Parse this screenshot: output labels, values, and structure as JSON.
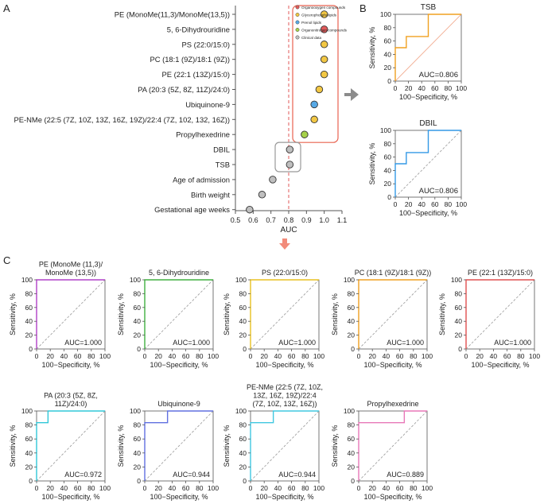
{
  "panels": {
    "a": "A",
    "b": "B",
    "c": "C"
  },
  "colors": {
    "categories": {
      "Organooxygen compounds": "#e05a5a",
      "Glycerophospholipids": "#f2c744",
      "Prenol lipids": "#57a9e6",
      "Organonitrogen compounds": "#a6d14a",
      "Clinical data": "#bfbfbf"
    },
    "box_red": "#e8624f",
    "box_gray": "#999999",
    "arrow": "#8c8c8c",
    "arrow_down": "#f28b7a",
    "threshold": "#e05a5a",
    "diag_b": "#f0a080",
    "diag_gray": "#999999"
  },
  "chart_data": [
    {
      "id": "A",
      "type": "scatter",
      "title": "",
      "xlabel": "AUC",
      "ylabel": "",
      "xlim": [
        0.5,
        1.1
      ],
      "xticks": [
        "0.5",
        "0.6",
        "0.7",
        "0.8",
        "0.9",
        "1.0",
        "1.1"
      ],
      "threshold": 0.8,
      "legend": [
        "Organooxygen compounds",
        "Glycerophospholipids",
        "Prenol lipids",
        "Organonitrogen compounds",
        "Clinical data"
      ],
      "legend_position": "top-right",
      "points": [
        {
          "label": "PE (MonoMe(11,3)/MonoMe(13,5))",
          "value": 1.0,
          "category": "Glycerophospholipids"
        },
        {
          "label": "5, 6-Dihydrouridine",
          "value": 1.0,
          "category": "Organooxygen compounds"
        },
        {
          "label": "PS (22:0/15:0)",
          "value": 1.0,
          "category": "Glycerophospholipids"
        },
        {
          "label": "PC (18:1 (9Z)/18:1 (9Z))",
          "value": 1.0,
          "category": "Glycerophospholipids"
        },
        {
          "label": "PE (22:1 (13Z)/15:0)",
          "value": 1.0,
          "category": "Glycerophospholipids"
        },
        {
          "label": "PA (20:3 (5Z, 8Z, 11Z)/24:0)",
          "value": 0.972,
          "category": "Glycerophospholipids"
        },
        {
          "label": "Ubiquinone-9",
          "value": 0.944,
          "category": "Prenol lipids"
        },
        {
          "label": "PE-NMe (22:5 (7Z, 10Z, 13Z, 16Z, 19Z)/22:4 (7Z, 102, 132, 16Z))",
          "value": 0.944,
          "category": "Glycerophospholipids"
        },
        {
          "label": "Propylhexedrine",
          "value": 0.889,
          "category": "Organonitrogen compounds"
        },
        {
          "label": "DBIL",
          "value": 0.806,
          "category": "Clinical data"
        },
        {
          "label": "TSB",
          "value": 0.806,
          "category": "Clinical data"
        },
        {
          "label": "Age of admission",
          "value": 0.71,
          "category": "Clinical data"
        },
        {
          "label": "Birth weight",
          "value": 0.65,
          "category": "Clinical data"
        },
        {
          "label": "Gestational age weeks",
          "value": 0.58,
          "category": "Clinical data"
        }
      ]
    },
    {
      "id": "B1",
      "type": "line",
      "title": "TSB",
      "xlabel": "100−Specificity, %",
      "ylabel": "Sensitivity, %",
      "xlim": [
        0,
        100
      ],
      "ylim": [
        0,
        100
      ],
      "xticks": [
        "0",
        "20",
        "40",
        "60",
        "80",
        "100"
      ],
      "yticks": [
        "0",
        "20",
        "40",
        "60",
        "80",
        "100"
      ],
      "color": "#f0a020",
      "diag_color": "#f0a080",
      "series": [
        {
          "name": "TSB",
          "x": [
            0,
            0,
            16.7,
            16.7,
            50,
            50,
            100
          ],
          "y": [
            0,
            50,
            50,
            66.7,
            66.7,
            100,
            100
          ]
        }
      ],
      "auc_text": "AUC=0.806"
    },
    {
      "id": "B2",
      "type": "line",
      "title": "DBIL",
      "xlabel": "100−Specificity, %",
      "ylabel": "Sensitivity, %",
      "xlim": [
        0,
        100
      ],
      "ylim": [
        0,
        100
      ],
      "xticks": [
        "0",
        "20",
        "40",
        "60",
        "80",
        "100"
      ],
      "yticks": [
        "0",
        "20",
        "40",
        "60",
        "80",
        "100"
      ],
      "color": "#3399e6",
      "diag_color": "#999999",
      "series": [
        {
          "name": "DBIL",
          "x": [
            0,
            0,
            16.7,
            16.7,
            50,
            50,
            100
          ],
          "y": [
            0,
            50,
            50,
            66.7,
            66.7,
            100,
            100
          ]
        }
      ],
      "auc_text": "AUC=0.806"
    },
    {
      "id": "C1",
      "type": "line",
      "title": "PE (MonoMe (11,3)/ MonoMe (13,5))",
      "xlabel": "100−Specificity, %",
      "ylabel": "Sensitivity, %",
      "xlim": [
        0,
        100
      ],
      "ylim": [
        0,
        100
      ],
      "xticks": [
        "0",
        "20",
        "40",
        "60",
        "80",
        "100"
      ],
      "yticks": [
        "0",
        "20",
        "40",
        "60",
        "80",
        "100"
      ],
      "color": "#b040c8",
      "diag_color": "#999999",
      "series": [
        {
          "name": "PE (MonoMe)",
          "x": [
            0,
            0,
            100
          ],
          "y": [
            0,
            100,
            100
          ]
        }
      ],
      "auc_text": "AUC=1.000"
    },
    {
      "id": "C2",
      "type": "line",
      "title": "5, 6-Dihydrouridine",
      "xlabel": "100−Specificity, %",
      "ylabel": "Sensitivity, %",
      "xlim": [
        0,
        100
      ],
      "ylim": [
        0,
        100
      ],
      "xticks": [
        "0",
        "20",
        "40",
        "60",
        "80",
        "100"
      ],
      "yticks": [
        "0",
        "20",
        "40",
        "60",
        "80",
        "100"
      ],
      "color": "#40b040",
      "diag_color": "#999999",
      "series": [
        {
          "name": "5, 6-Dihydrouridine",
          "x": [
            0,
            0,
            100
          ],
          "y": [
            0,
            100,
            100
          ]
        }
      ],
      "auc_text": "AUC=1.000"
    },
    {
      "id": "C3",
      "type": "line",
      "title": "PS (22:0/15:0)",
      "xlabel": "100−Specificity, %",
      "ylabel": "Sensitivity, %",
      "xlim": [
        0,
        100
      ],
      "ylim": [
        0,
        100
      ],
      "xticks": [
        "0",
        "20",
        "40",
        "60",
        "80",
        "100"
      ],
      "yticks": [
        "0",
        "20",
        "40",
        "60",
        "80",
        "100"
      ],
      "color": "#e8c020",
      "diag_color": "#999999",
      "series": [
        {
          "name": "PS (22:0/15:0)",
          "x": [
            0,
            0,
            100
          ],
          "y": [
            0,
            100,
            100
          ]
        }
      ],
      "auc_text": "AUC=1.000"
    },
    {
      "id": "C4",
      "type": "line",
      "title": "PC (18:1 (9Z)/18:1 (9Z))",
      "xlabel": "100−Specificity, %",
      "ylabel": "Sensitivity, %",
      "xlim": [
        0,
        100
      ],
      "ylim": [
        0,
        100
      ],
      "xticks": [
        "0",
        "20",
        "40",
        "60",
        "80",
        "100"
      ],
      "yticks": [
        "0",
        "20",
        "40",
        "60",
        "80",
        "100"
      ],
      "color": "#f0a020",
      "diag_color": "#999999",
      "series": [
        {
          "name": "PC (18:1 (9Z)/18:1 (9Z))",
          "x": [
            0,
            0,
            100
          ],
          "y": [
            0,
            100,
            100
          ]
        }
      ],
      "auc_text": "AUC=1.000"
    },
    {
      "id": "C5",
      "type": "line",
      "title": "PE (22:1 (13Z)/15:0)",
      "xlabel": "100−Specificity, %",
      "ylabel": "Sensitivity, %",
      "xlim": [
        0,
        100
      ],
      "ylim": [
        0,
        100
      ],
      "xticks": [
        "0",
        "20",
        "40",
        "60",
        "80",
        "100"
      ],
      "yticks": [
        "0",
        "20",
        "40",
        "60",
        "80",
        "100"
      ],
      "color": "#e05050",
      "diag_color": "#999999",
      "series": [
        {
          "name": "PE (22:1 (13Z)/15:0)",
          "x": [
            0,
            0,
            100
          ],
          "y": [
            0,
            100,
            100
          ]
        }
      ],
      "auc_text": "AUC=1.000"
    },
    {
      "id": "C6",
      "type": "line",
      "title": "PA (20:3 (5Z, 8Z, 11Z)/24:0)",
      "xlabel": "100−Specificity, %",
      "ylabel": "Sensitivity, %",
      "xlim": [
        0,
        100
      ],
      "ylim": [
        0,
        100
      ],
      "xticks": [
        "0",
        "20",
        "40",
        "60",
        "80",
        "100"
      ],
      "yticks": [
        "0",
        "20",
        "40",
        "60",
        "80",
        "100"
      ],
      "color": "#30c8d8",
      "diag_color": "#999999",
      "series": [
        {
          "name": "PA",
          "x": [
            0,
            0,
            16.7,
            16.7,
            100
          ],
          "y": [
            0,
            83.3,
            83.3,
            100,
            100
          ]
        }
      ],
      "auc_text": "AUC=0.972"
    },
    {
      "id": "C7",
      "type": "line",
      "title": "Ubiquinone-9",
      "xlabel": "100−Specificity, %",
      "ylabel": "Sensitivity, %",
      "xlim": [
        0,
        100
      ],
      "ylim": [
        0,
        100
      ],
      "xticks": [
        "0",
        "20",
        "40",
        "60",
        "80",
        "100"
      ],
      "yticks": [
        "0",
        "20",
        "40",
        "60",
        "80",
        "100"
      ],
      "color": "#6070e0",
      "diag_color": "#999999",
      "series": [
        {
          "name": "Ubiquinone-9",
          "x": [
            0,
            0,
            33.3,
            33.3,
            100
          ],
          "y": [
            0,
            83.3,
            83.3,
            100,
            100
          ]
        }
      ],
      "auc_text": "AUC=0.944"
    },
    {
      "id": "C8",
      "type": "line",
      "title": "PE-NMe (22:5 (7Z, 10Z, 13Z, 16Z, 19Z)/22:4 (7Z, 10Z, 13Z, 16Z))",
      "xlabel": "100−Specificity, %",
      "ylabel": "Sensitivity, %",
      "xlim": [
        0,
        100
      ],
      "ylim": [
        0,
        100
      ],
      "xticks": [
        "0",
        "20",
        "40",
        "60",
        "80",
        "100"
      ],
      "yticks": [
        "0",
        "20",
        "40",
        "60",
        "80",
        "100"
      ],
      "color": "#40c8e0",
      "diag_color": "#999999",
      "series": [
        {
          "name": "PE-NMe",
          "x": [
            0,
            0,
            33.3,
            33.3,
            100
          ],
          "y": [
            0,
            83.3,
            83.3,
            100,
            100
          ]
        }
      ],
      "auc_text": "AUC=0.944"
    },
    {
      "id": "C9",
      "type": "line",
      "title": "Propylhexedrine",
      "xlabel": "100−Specificity, %",
      "ylabel": "Sensitivity, %",
      "xlim": [
        0,
        100
      ],
      "ylim": [
        0,
        100
      ],
      "xticks": [
        "0",
        "20",
        "40",
        "60",
        "80",
        "100"
      ],
      "yticks": [
        "0",
        "20",
        "40",
        "60",
        "80",
        "100"
      ],
      "color": "#e878b8",
      "diag_color": "#999999",
      "series": [
        {
          "name": "Propylhexedrine",
          "x": [
            0,
            0,
            66.7,
            66.7,
            100
          ],
          "y": [
            0,
            83.3,
            83.3,
            100,
            100
          ]
        }
      ],
      "auc_text": "AUC=0.889"
    }
  ]
}
